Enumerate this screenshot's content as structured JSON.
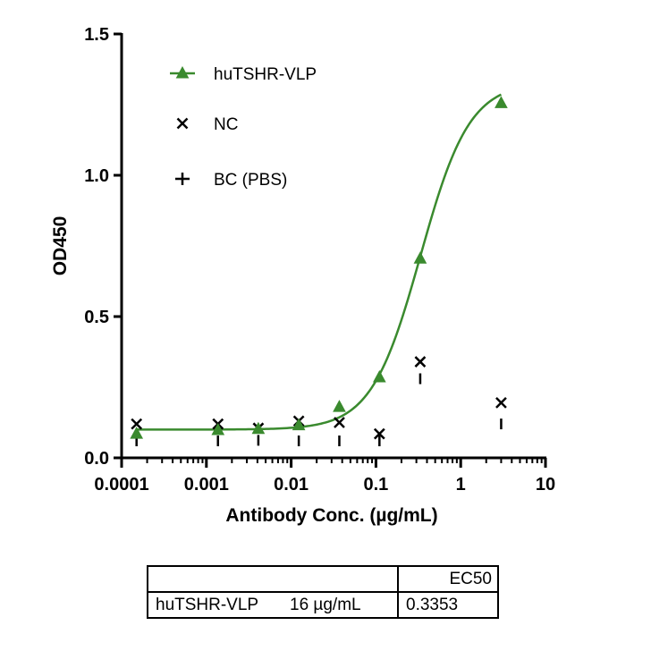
{
  "chart_data": {
    "type": "scatter",
    "xscale": "log",
    "xlim": [
      0.0001,
      10
    ],
    "ylim": [
      0,
      1.5
    ],
    "xlabel": "Antibody Conc. (µg/mL)",
    "ylabel": "OD450",
    "x_ticks": [
      0.0001,
      0.001,
      0.01,
      0.1,
      1,
      10
    ],
    "x_tick_labels": [
      "0.0001",
      "0.001",
      "0.01",
      "0.1",
      "1",
      "10"
    ],
    "y_ticks": [
      0,
      0.5,
      1.0,
      1.5
    ],
    "y_tick_labels": [
      "0.0",
      "0.5",
      "1.0",
      "1.5"
    ],
    "legend_position": "top-left",
    "series": [
      {
        "name": "huTSHR-VLP",
        "marker": "triangle",
        "color": "#3a8a2e",
        "x": [
          0.00015,
          0.00137,
          0.0041,
          0.0123,
          0.037,
          0.11,
          0.333,
          3.0
        ],
        "y": [
          0.085,
          0.098,
          0.102,
          0.115,
          0.18,
          0.285,
          0.705,
          1.255
        ],
        "fit": {
          "model": "4PL",
          "bottom": 0.1,
          "top": 1.33,
          "ec50": 0.3353,
          "hill": 1.5
        }
      },
      {
        "name": "NC",
        "marker": "x",
        "color": "#000000",
        "x": [
          0.00015,
          0.00137,
          0.0041,
          0.0123,
          0.037,
          0.11,
          0.333,
          3.0
        ],
        "y": [
          0.12,
          0.12,
          0.105,
          0.13,
          0.125,
          0.085,
          0.34,
          0.195
        ]
      },
      {
        "name": "BC (PBS)",
        "marker": "vline",
        "color": "#000000",
        "x": [
          0.00015,
          0.00137,
          0.0041,
          0.0123,
          0.037,
          0.11,
          0.333,
          3.0
        ],
        "y": [
          0.06,
          0.06,
          0.062,
          0.06,
          0.06,
          0.06,
          0.28,
          0.12
        ]
      }
    ]
  },
  "table": {
    "header": {
      "label": "",
      "ec50": "EC50"
    },
    "rows": [
      {
        "name": "huTSHR-VLP",
        "conc": "16 µg/mL",
        "ec50": "0.3353"
      }
    ]
  }
}
